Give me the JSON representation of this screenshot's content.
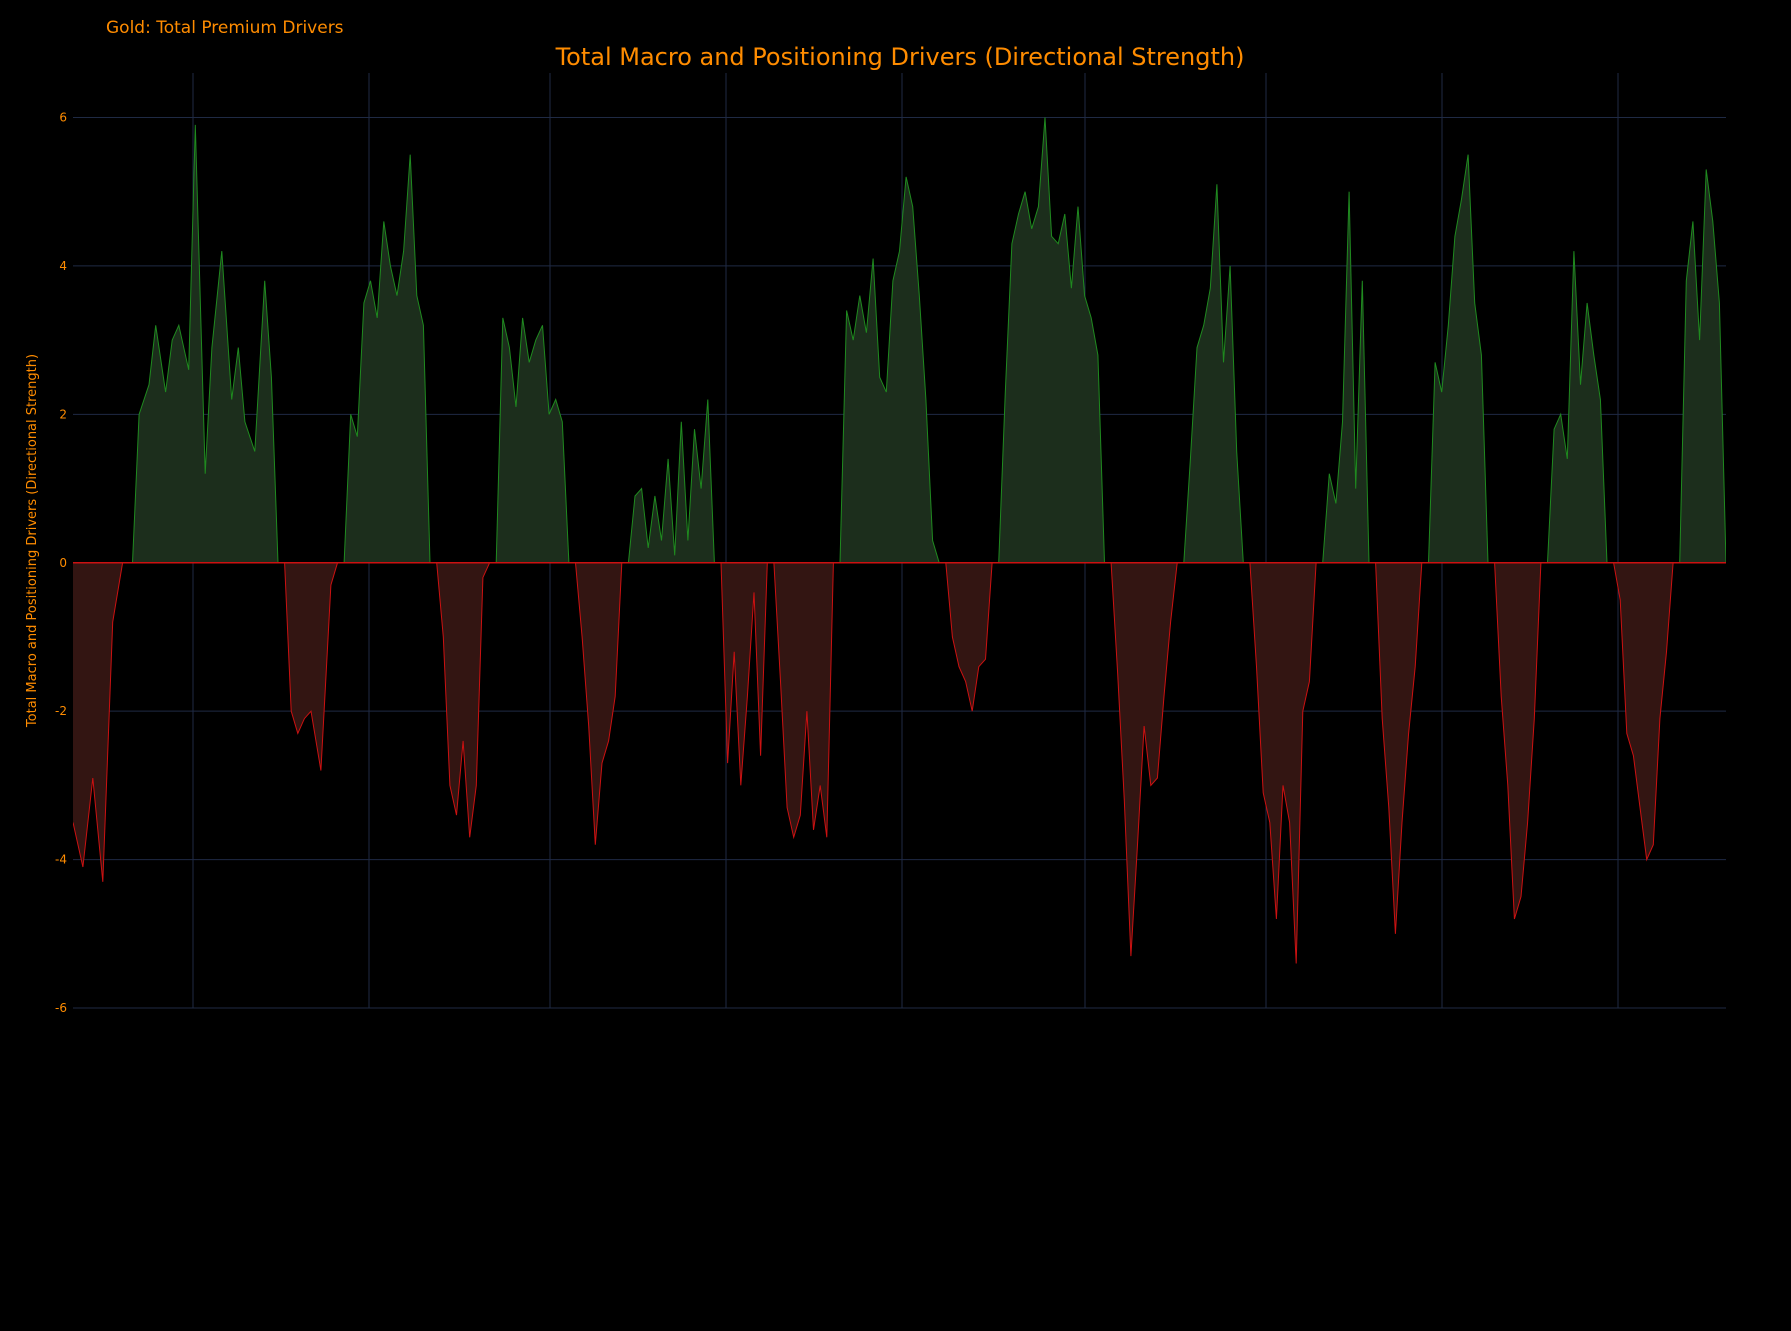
{
  "page": {
    "label": "Gold: Total Premium Drivers"
  },
  "colors": {
    "background": "#000000",
    "text": "#ff8c00",
    "grid": "#1f2a44",
    "positive_line": "#1f8a1f",
    "positive_fill": "#1c2e1c",
    "negative_line": "#cc1111",
    "negative_fill": "#331512",
    "zero_line": "#cc1111",
    "candle_up": "#3e9a74",
    "candle_down": "#ef4444",
    "bar_up": "#0f8a0f",
    "bar_down": "#e01010"
  },
  "chart_data": [
    {
      "type": "area",
      "title": "Total Macro and Positioning Drivers (Directional Strength)",
      "ylabel": "Total Macro and Positioning Drivers (Directional Strength)",
      "ylim": [
        -6,
        6.6
      ],
      "yticks": [
        -6,
        -4,
        -2,
        0,
        2,
        4,
        6
      ],
      "grid": true,
      "series": [
        {
          "axis": "left",
          "style": "area-pos-neg",
          "x_index_range": [
            0,
            499
          ],
          "knots": [
            [
              0,
              -3.5
            ],
            [
              3,
              -4.1
            ],
            [
              6,
              -2.9
            ],
            [
              9,
              -4.3
            ],
            [
              12,
              -0.8
            ],
            [
              15,
              0
            ],
            [
              18,
              0
            ],
            [
              20,
              2.0
            ],
            [
              23,
              2.4
            ],
            [
              25,
              3.2
            ],
            [
              28,
              2.3
            ],
            [
              30,
              3.0
            ],
            [
              32,
              3.2
            ],
            [
              35,
              2.6
            ],
            [
              37,
              5.9
            ],
            [
              40,
              1.2
            ],
            [
              42,
              2.9
            ],
            [
              45,
              4.2
            ],
            [
              48,
              2.2
            ],
            [
              50,
              2.9
            ],
            [
              52,
              1.9
            ],
            [
              55,
              1.5
            ],
            [
              58,
              3.8
            ],
            [
              60,
              2.5
            ],
            [
              62,
              0
            ],
            [
              64,
              0
            ],
            [
              66,
              -2.0
            ],
            [
              68,
              -2.3
            ],
            [
              70,
              -2.1
            ],
            [
              72,
              -2.0
            ],
            [
              75,
              -2.8
            ],
            [
              78,
              -0.3
            ],
            [
              80,
              0
            ],
            [
              82,
              0
            ],
            [
              84,
              2.0
            ],
            [
              86,
              1.7
            ],
            [
              88,
              3.5
            ],
            [
              90,
              3.8
            ],
            [
              92,
              3.3
            ],
            [
              94,
              4.6
            ],
            [
              96,
              4.0
            ],
            [
              98,
              3.6
            ],
            [
              100,
              4.2
            ],
            [
              102,
              5.5
            ],
            [
              104,
              3.6
            ],
            [
              106,
              3.2
            ],
            [
              108,
              0
            ],
            [
              110,
              0
            ],
            [
              112,
              -1.0
            ],
            [
              114,
              -3.0
            ],
            [
              116,
              -3.4
            ],
            [
              118,
              -2.4
            ],
            [
              120,
              -3.7
            ],
            [
              122,
              -3.0
            ],
            [
              124,
              -0.2
            ],
            [
              126,
              0
            ],
            [
              128,
              0
            ],
            [
              130,
              3.3
            ],
            [
              132,
              2.9
            ],
            [
              134,
              2.1
            ],
            [
              136,
              3.3
            ],
            [
              138,
              2.7
            ],
            [
              140,
              3.0
            ],
            [
              142,
              3.2
            ],
            [
              144,
              2.0
            ],
            [
              146,
              2.2
            ],
            [
              148,
              1.9
            ],
            [
              150,
              0
            ],
            [
              152,
              0
            ],
            [
              154,
              -1.0
            ],
            [
              156,
              -2.2
            ],
            [
              158,
              -3.8
            ],
            [
              160,
              -2.7
            ],
            [
              162,
              -2.4
            ],
            [
              164,
              -1.8
            ],
            [
              166,
              0
            ],
            [
              168,
              0
            ],
            [
              170,
              0.9
            ],
            [
              172,
              1.0
            ],
            [
              174,
              0.2
            ],
            [
              176,
              0.9
            ],
            [
              178,
              0.3
            ],
            [
              180,
              1.4
            ],
            [
              182,
              0.1
            ],
            [
              184,
              1.9
            ],
            [
              186,
              0.3
            ],
            [
              188,
              1.8
            ],
            [
              190,
              1.0
            ],
            [
              192,
              2.2
            ],
            [
              194,
              0
            ],
            [
              196,
              0
            ],
            [
              198,
              -2.7
            ],
            [
              200,
              -1.2
            ],
            [
              202,
              -3.0
            ],
            [
              204,
              -1.8
            ],
            [
              206,
              -0.4
            ],
            [
              208,
              -2.6
            ],
            [
              210,
              0
            ],
            [
              212,
              0
            ],
            [
              214,
              -1.6
            ],
            [
              216,
              -3.3
            ],
            [
              218,
              -3.7
            ],
            [
              220,
              -3.4
            ],
            [
              222,
              -2.0
            ],
            [
              224,
              -3.6
            ],
            [
              226,
              -3.0
            ],
            [
              228,
              -3.7
            ],
            [
              230,
              0
            ],
            [
              232,
              0
            ],
            [
              234,
              3.4
            ],
            [
              236,
              3.0
            ],
            [
              238,
              3.6
            ],
            [
              240,
              3.1
            ],
            [
              242,
              4.1
            ],
            [
              244,
              2.5
            ],
            [
              246,
              2.3
            ],
            [
              248,
              3.8
            ],
            [
              250,
              4.2
            ],
            [
              252,
              5.2
            ],
            [
              254,
              4.8
            ],
            [
              256,
              3.6
            ],
            [
              258,
              2.2
            ],
            [
              260,
              0.3
            ],
            [
              262,
              0
            ],
            [
              264,
              0
            ],
            [
              266,
              -1.0
            ],
            [
              268,
              -1.4
            ],
            [
              270,
              -1.6
            ],
            [
              272,
              -2.0
            ],
            [
              274,
              -1.4
            ],
            [
              276,
              -1.3
            ],
            [
              278,
              0
            ],
            [
              280,
              0
            ],
            [
              282,
              2.3
            ],
            [
              284,
              4.3
            ],
            [
              286,
              4.7
            ],
            [
              288,
              5.0
            ],
            [
              290,
              4.5
            ],
            [
              292,
              4.8
            ],
            [
              294,
              6.0
            ],
            [
              296,
              4.4
            ],
            [
              298,
              4.3
            ],
            [
              300,
              4.7
            ],
            [
              302,
              3.7
            ],
            [
              304,
              4.8
            ],
            [
              306,
              3.6
            ],
            [
              308,
              3.3
            ],
            [
              310,
              2.8
            ],
            [
              312,
              0
            ],
            [
              314,
              0
            ],
            [
              316,
              -1.5
            ],
            [
              318,
              -3.2
            ],
            [
              320,
              -5.3
            ],
            [
              322,
              -3.8
            ],
            [
              324,
              -2.2
            ],
            [
              326,
              -3.0
            ],
            [
              328,
              -2.9
            ],
            [
              330,
              -1.8
            ],
            [
              332,
              -0.8
            ],
            [
              334,
              0
            ],
            [
              336,
              0
            ],
            [
              338,
              1.4
            ],
            [
              340,
              2.9
            ],
            [
              342,
              3.2
            ],
            [
              344,
              3.7
            ],
            [
              346,
              5.1
            ],
            [
              348,
              2.7
            ],
            [
              350,
              4.0
            ],
            [
              352,
              1.5
            ],
            [
              354,
              0
            ],
            [
              356,
              0
            ],
            [
              358,
              -1.4
            ],
            [
              360,
              -3.1
            ],
            [
              362,
              -3.5
            ],
            [
              364,
              -4.8
            ],
            [
              366,
              -3.0
            ],
            [
              368,
              -3.5
            ],
            [
              370,
              -5.4
            ],
            [
              372,
              -2.0
            ],
            [
              374,
              -1.6
            ],
            [
              376,
              0
            ],
            [
              378,
              0
            ],
            [
              380,
              1.2
            ],
            [
              382,
              0.8
            ],
            [
              384,
              1.9
            ],
            [
              386,
              5.0
            ],
            [
              388,
              1.0
            ],
            [
              390,
              3.8
            ],
            [
              392,
              0
            ],
            [
              394,
              0
            ],
            [
              396,
              -2.1
            ],
            [
              398,
              -3.3
            ],
            [
              400,
              -5.0
            ],
            [
              402,
              -3.5
            ],
            [
              404,
              -2.3
            ],
            [
              406,
              -1.4
            ],
            [
              408,
              0
            ],
            [
              410,
              0
            ],
            [
              412,
              2.7
            ],
            [
              414,
              2.3
            ],
            [
              416,
              3.2
            ],
            [
              418,
              4.4
            ],
            [
              420,
              4.9
            ],
            [
              422,
              5.5
            ],
            [
              424,
              3.5
            ],
            [
              426,
              2.8
            ],
            [
              428,
              0
            ],
            [
              430,
              0
            ],
            [
              432,
              -1.8
            ],
            [
              434,
              -3.0
            ],
            [
              436,
              -4.8
            ],
            [
              438,
              -4.5
            ],
            [
              440,
              -3.5
            ],
            [
              442,
              -2.1
            ],
            [
              444,
              0
            ],
            [
              446,
              0
            ],
            [
              448,
              1.8
            ],
            [
              450,
              2.0
            ],
            [
              452,
              1.4
            ],
            [
              454,
              4.2
            ],
            [
              456,
              2.4
            ],
            [
              458,
              3.5
            ],
            [
              460,
              2.8
            ],
            [
              462,
              2.2
            ],
            [
              464,
              0
            ],
            [
              466,
              0
            ],
            [
              468,
              -0.5
            ],
            [
              470,
              -2.3
            ],
            [
              472,
              -2.6
            ],
            [
              474,
              -3.3
            ],
            [
              476,
              -4.0
            ],
            [
              478,
              -3.8
            ],
            [
              480,
              -2.1
            ],
            [
              482,
              -1.2
            ],
            [
              484,
              0
            ],
            [
              486,
              0
            ],
            [
              488,
              3.8
            ],
            [
              490,
              4.6
            ],
            [
              492,
              3.0
            ],
            [
              494,
              5.3
            ],
            [
              496,
              4.6
            ],
            [
              498,
              3.5
            ],
            [
              500,
              0
            ]
          ],
          "x_range": [
            0,
            500
          ]
        }
      ]
    }
  ]
}
